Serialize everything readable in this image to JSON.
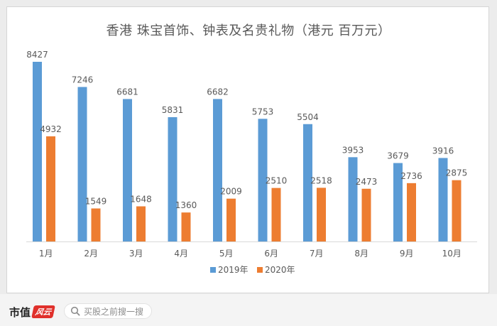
{
  "colors": {
    "series_2019": "#5b9bd5",
    "series_2020": "#ed7d31",
    "axis": "#d9d9d9",
    "label": "#595959"
  },
  "chart_data": {
    "type": "bar",
    "title": "香港 珠宝首饰、钟表及名贵礼物（港元 百万元）",
    "categories": [
      "1月",
      "2月",
      "3月",
      "4月",
      "5月",
      "6月",
      "7月",
      "8月",
      "9月",
      "10月"
    ],
    "series": [
      {
        "name": "2019年",
        "values": [
          8427,
          7246,
          6681,
          5831,
          6682,
          5753,
          5504,
          3953,
          3679,
          3916
        ]
      },
      {
        "name": "2020年",
        "values": [
          4932,
          1549,
          1648,
          1360,
          2009,
          2510,
          2518,
          2473,
          2736,
          2875
        ]
      }
    ],
    "ylim": [
      0,
      9000
    ],
    "grid": false,
    "legend": "bottom"
  },
  "footer": {
    "brand": "市值",
    "brand_seal": "风云",
    "search_placeholder": "买股之前搜一搜",
    "search_icon": "search-icon"
  }
}
